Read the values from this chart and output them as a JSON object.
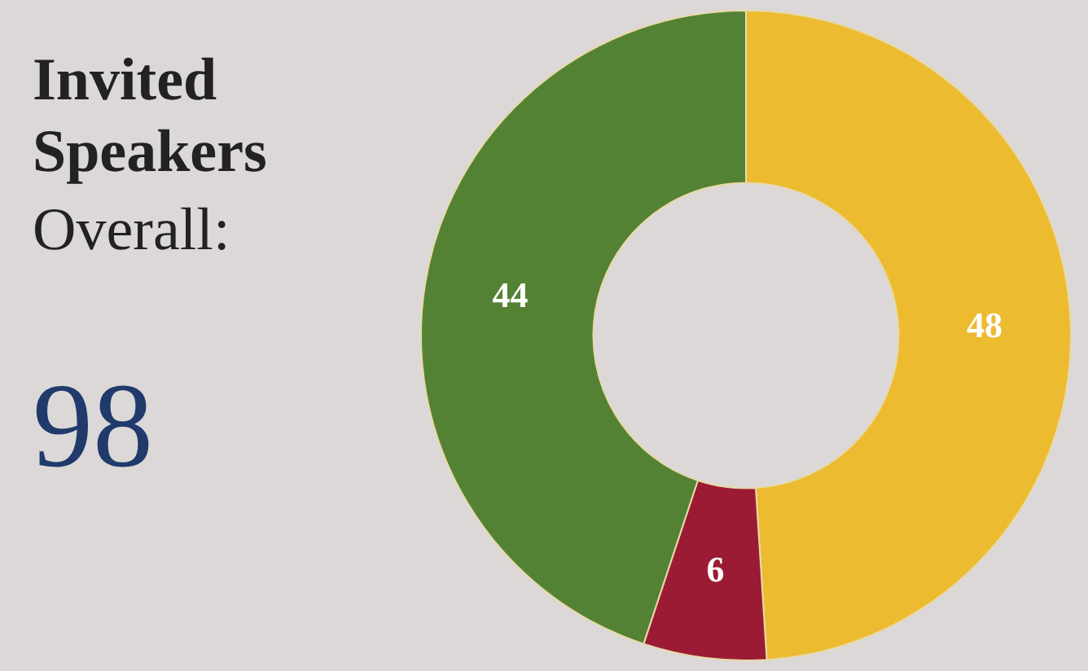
{
  "chart_data": {
    "type": "donut",
    "title": "Invited Speakers",
    "subtitle": "Overall:",
    "annotations": [
      "98"
    ],
    "categories": [
      null,
      null,
      null
    ],
    "values": [
      48,
      6,
      44
    ],
    "colors": [
      "#ecbb30",
      "#9b1b34",
      "#548235"
    ],
    "data_labels": true
  }
}
